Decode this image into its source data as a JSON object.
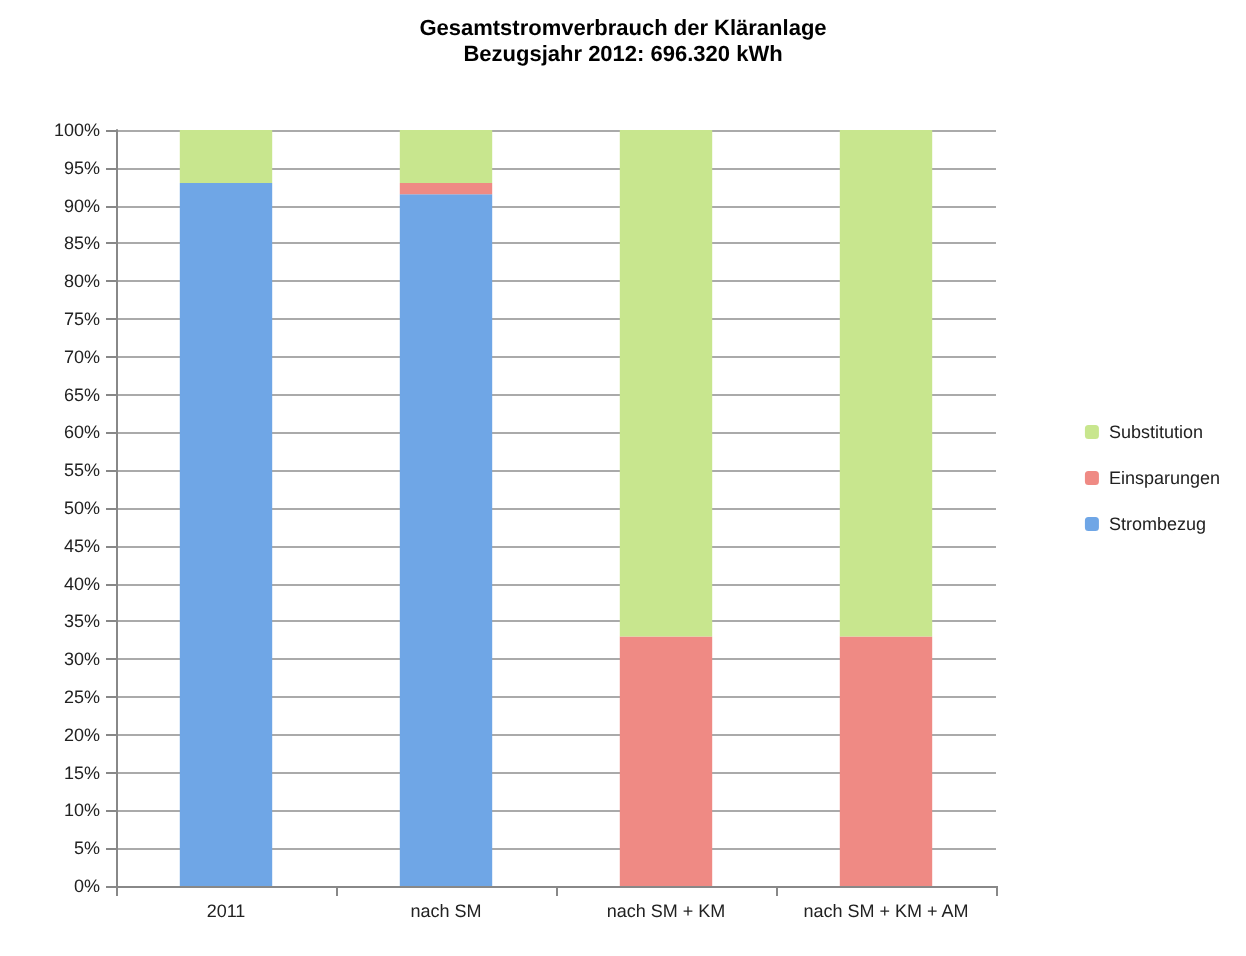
{
  "chart_data": {
    "type": "bar",
    "title": "Gesamtstromverbrauch der Kläranlage",
    "subtitle": "Bezugsjahr 2012: 696.320 kWh",
    "categories": [
      "2011",
      "nach SM",
      "nach SM + KM",
      "nach SM + KM + AM"
    ],
    "stacked": true,
    "series": [
      {
        "name": "Strombezug",
        "color": "#6fa6e6",
        "values": [
          93,
          91.5,
          0,
          0
        ]
      },
      {
        "name": "Einsparungen",
        "color": "#ef8a84",
        "values": [
          0,
          1.5,
          33,
          33
        ]
      },
      {
        "name": "Substitution",
        "color": "#c8e68e",
        "values": [
          7,
          7,
          67,
          67
        ]
      }
    ],
    "ylim": [
      0,
      100
    ],
    "yticks": [
      {
        "value": 0,
        "label": "0%"
      },
      {
        "value": 5,
        "label": "5%"
      },
      {
        "value": 10,
        "label": "10%"
      },
      {
        "value": 15,
        "label": "15%"
      },
      {
        "value": 20,
        "label": "20%"
      },
      {
        "value": 25,
        "label": "25%"
      },
      {
        "value": 30,
        "label": "30%"
      },
      {
        "value": 35,
        "label": "35%"
      },
      {
        "value": 40,
        "label": "40%"
      },
      {
        "value": 45,
        "label": "45%"
      },
      {
        "value": 50,
        "label": "50%"
      },
      {
        "value": 55,
        "label": "55%"
      },
      {
        "value": 60,
        "label": "60%"
      },
      {
        "value": 65,
        "label": "65%"
      },
      {
        "value": 70,
        "label": "70%"
      },
      {
        "value": 75,
        "label": "75%"
      },
      {
        "value": 80,
        "label": "80%"
      },
      {
        "value": 85,
        "label": "85%"
      },
      {
        "value": 90,
        "label": "90%"
      },
      {
        "value": 95,
        "label": "95%"
      },
      {
        "value": 100,
        "label": "100%"
      }
    ],
    "grid": "y",
    "legend": "right"
  }
}
